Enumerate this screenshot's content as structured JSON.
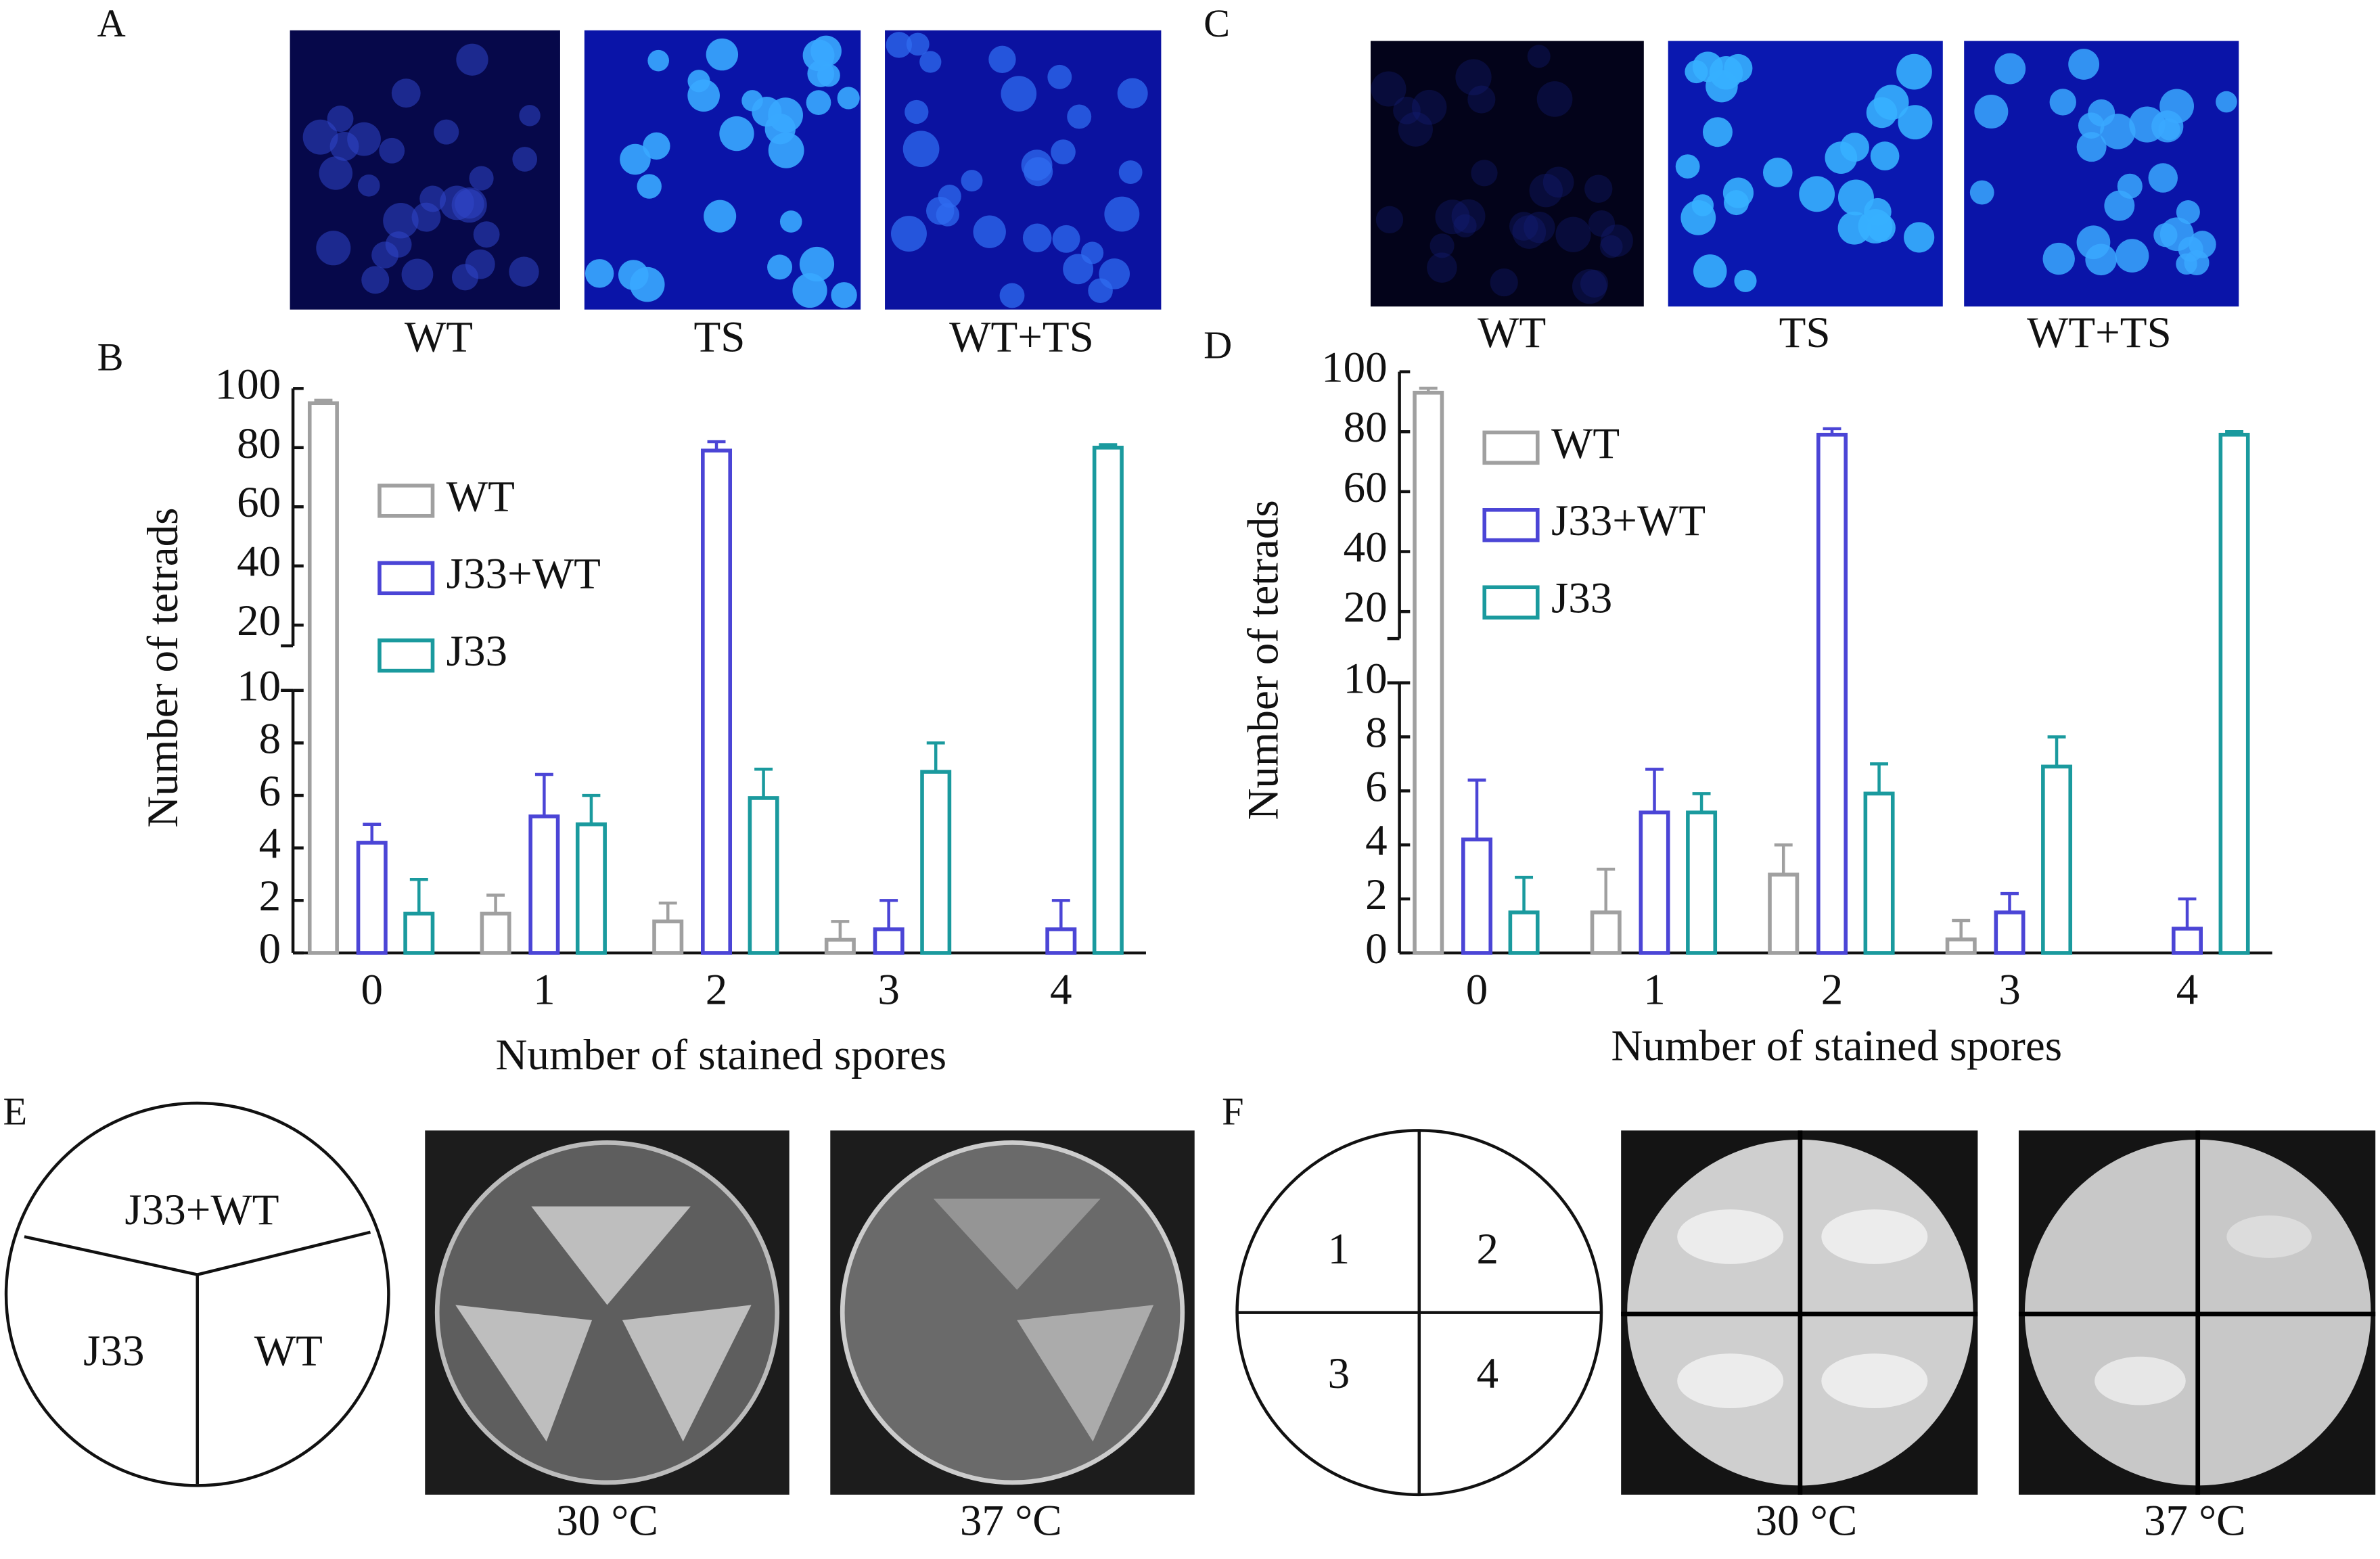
{
  "panel_labels": [
    "A",
    "B",
    "C",
    "D",
    "E",
    "F"
  ],
  "micrographs": [
    {
      "images": [
        "WT",
        "TS",
        "WT+TS"
      ]
    },
    {
      "images": [
        "WT",
        "TS",
        "WT+TS"
      ]
    }
  ],
  "plate_map_E": {
    "sectors": [
      "J33+WT",
      "J33",
      "WT"
    ],
    "plates": [
      "30 °C",
      "37 °C"
    ]
  },
  "plate_map_F": {
    "sectors": [
      "1",
      "2",
      "3",
      "4"
    ],
    "plates": [
      "30 °C",
      "37 °C"
    ]
  },
  "chart_data": [
    {
      "type": "bar",
      "xlabel": "Number of stained spores",
      "ylabel": "Number of tetrads",
      "categories": [
        "0",
        "1",
        "2",
        "3",
        "4"
      ],
      "series": [
        {
          "name": "WT",
          "color": "#a0a0a0",
          "values": [
            95,
            1.5,
            1.2,
            0.5,
            0
          ],
          "errors": [
            1,
            0.7,
            0.7,
            0.7,
            null
          ]
        },
        {
          "name": "J33+WT",
          "color": "#4b45d6",
          "values": [
            4.2,
            5.2,
            79,
            0.9,
            0.9
          ],
          "errors": [
            0.7,
            1.6,
            3,
            1.1,
            1.1
          ]
        },
        {
          "name": "J33",
          "color": "#1a9a9e",
          "values": [
            1.5,
            4.9,
            5.9,
            6.9,
            80
          ],
          "errors": [
            1.3,
            1.1,
            1.1,
            1.1,
            1
          ]
        }
      ],
      "ysegments": [
        {
          "ylim": [
            0,
            10
          ],
          "yticks": [
            0,
            2,
            4,
            6,
            8,
            10
          ]
        },
        {
          "ylim": [
            13,
            100
          ],
          "yticks": [
            20,
            40,
            60,
            80,
            100
          ]
        }
      ],
      "legend": "upper left"
    },
    {
      "type": "bar",
      "xlabel": "Number of stained spores",
      "ylabel": "Number of tetrads",
      "categories": [
        "0",
        "1",
        "2",
        "3",
        "4"
      ],
      "series": [
        {
          "name": "WT",
          "color": "#a0a0a0",
          "values": [
            93,
            1.5,
            2.9,
            0.5,
            0
          ],
          "errors": [
            1.5,
            1.6,
            1.1,
            0.7,
            null
          ]
        },
        {
          "name": "J33+WT",
          "color": "#4b45d6",
          "values": [
            4.2,
            5.2,
            79,
            1.5,
            0.9
          ],
          "errors": [
            2.2,
            1.6,
            2,
            0.7,
            1.1
          ]
        },
        {
          "name": "J33",
          "color": "#1a9a9e",
          "values": [
            1.5,
            5.2,
            5.9,
            6.9,
            79
          ],
          "errors": [
            1.3,
            0.7,
            1.1,
            1.1,
            1
          ]
        }
      ],
      "ysegments": [
        {
          "ylim": [
            0,
            10
          ],
          "yticks": [
            0,
            2,
            4,
            6,
            8,
            10
          ]
        },
        {
          "ylim": [
            11,
            100
          ],
          "yticks": [
            20,
            40,
            60,
            80,
            100
          ]
        }
      ],
      "legend": "upper left"
    }
  ]
}
